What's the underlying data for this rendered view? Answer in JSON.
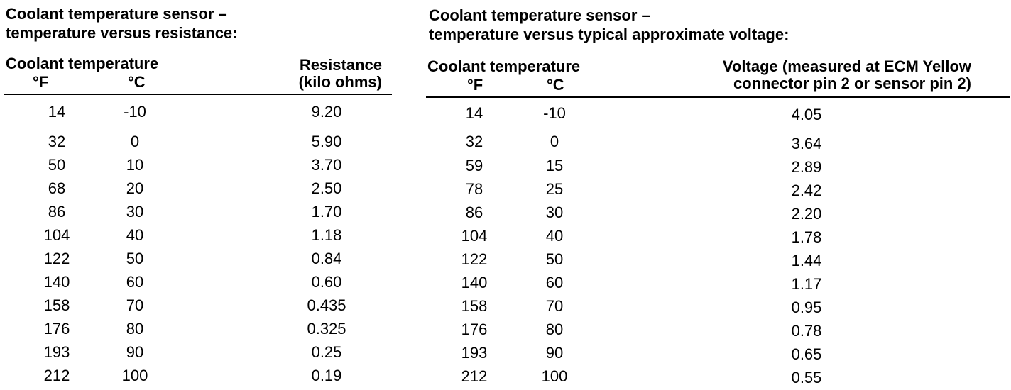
{
  "left_table": {
    "title_line1": "Coolant temperature sensor –",
    "title_line2": "temperature versus resistance:",
    "header_group": "Coolant temperature",
    "header_f": "°F",
    "header_c": "°C",
    "header_value_line1": "Resistance",
    "header_value_line2": "(kilo ohms)",
    "rows": [
      {
        "f": "14",
        "c": "-10",
        "v": "9.20"
      },
      {
        "f": "32",
        "c": "0",
        "v": "5.90"
      },
      {
        "f": "50",
        "c": "10",
        "v": "3.70"
      },
      {
        "f": "68",
        "c": "20",
        "v": "2.50"
      },
      {
        "f": "86",
        "c": "30",
        "v": "1.70"
      },
      {
        "f": "104",
        "c": "40",
        "v": "1.18"
      },
      {
        "f": "122",
        "c": "50",
        "v": "0.84"
      },
      {
        "f": "140",
        "c": "60",
        "v": "0.60"
      },
      {
        "f": "158",
        "c": "70",
        "v": "0.435"
      },
      {
        "f": "176",
        "c": "80",
        "v": "0.325"
      },
      {
        "f": "193",
        "c": "90",
        "v": "0.25"
      },
      {
        "f": "212",
        "c": "100",
        "v": "0.19"
      }
    ]
  },
  "right_table": {
    "title_line1": "Coolant temperature sensor –",
    "title_line2": "temperature versus typical approximate voltage:",
    "header_group": "Coolant temperature",
    "header_f": "°F",
    "header_c": "°C",
    "header_value_line1": "Voltage (measured at ECM Yellow",
    "header_value_line2": "connector pin 2 or sensor pin 2)",
    "rows": [
      {
        "f": "14",
        "c": "-10",
        "v": "4.05"
      },
      {
        "f": "32",
        "c": "0",
        "v": "3.64"
      },
      {
        "f": "59",
        "c": "15",
        "v": "2.89"
      },
      {
        "f": "78",
        "c": "25",
        "v": "2.42"
      },
      {
        "f": "86",
        "c": "30",
        "v": "2.20"
      },
      {
        "f": "104",
        "c": "40",
        "v": "1.78"
      },
      {
        "f": "122",
        "c": "50",
        "v": "1.44"
      },
      {
        "f": "140",
        "c": "60",
        "v": "1.17"
      },
      {
        "f": "158",
        "c": "70",
        "v": "0.95"
      },
      {
        "f": "176",
        "c": "80",
        "v": "0.78"
      },
      {
        "f": "193",
        "c": "90",
        "v": "0.65"
      },
      {
        "f": "212",
        "c": "100",
        "v": "0.55"
      }
    ]
  }
}
